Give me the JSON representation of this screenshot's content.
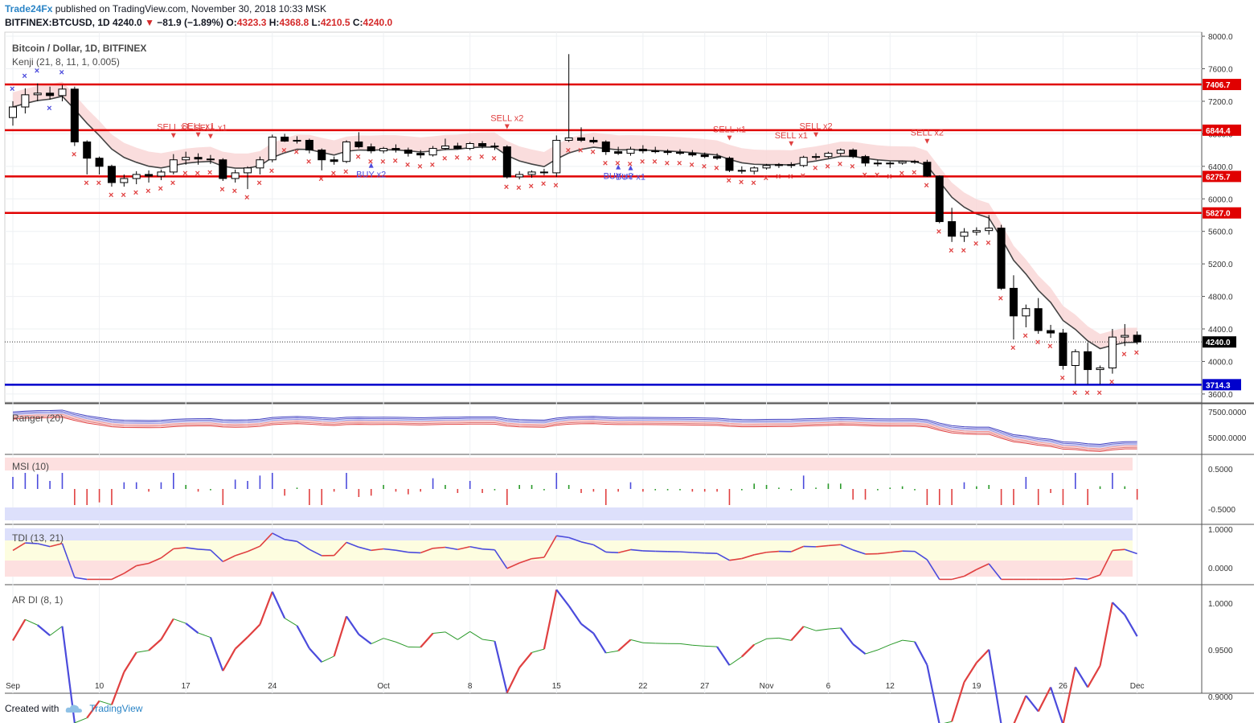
{
  "header": {
    "brand": "Trade24Fx",
    "published": " published on TradingView.com, November 30, 2018 10:33 MSK",
    "symbol": "BITFINEX:BTCUSD, 1D",
    "last": "4240.0",
    "arrow": "▼",
    "change": "−81.9 (−1.89%)",
    "o_label": "O:",
    "o": "4323.3",
    "h_label": "H:",
    "h": "4368.8",
    "l_label": "L:",
    "l": "4210.5",
    "c_label": "C:",
    "c": "4240.0"
  },
  "footer": {
    "created": "Created with",
    "tv": "TradingView"
  },
  "colors": {
    "up": "#ffffff",
    "down": "#000000",
    "level": "#e00000",
    "support": "#0000cc",
    "sell": "#e04040",
    "buy": "#4b4bdc"
  },
  "chart_data": [
    {
      "type": "candlestick",
      "title": "Bitcoin / Dollar, 1D, BITFINEX",
      "indicator": "Kenji (21, 8, 11, 1, 0.005)",
      "x_ticks": [
        "Sep",
        "10",
        "17",
        "24",
        "Oct",
        "8",
        "15",
        "22",
        "27",
        "Nov",
        "6",
        "12",
        "19",
        "26",
        "Dec"
      ],
      "y_ticks": [
        "8000.0",
        "7600.0",
        "7200.0",
        "6800.0",
        "6400.0",
        "6000.0",
        "5600.0",
        "5200.0",
        "4800.0",
        "4400.0",
        "4000.0",
        "3600.0"
      ],
      "ylim": [
        3500,
        8050
      ],
      "levels": [
        {
          "label": "7406.7",
          "value": 7406.7,
          "color": "red"
        },
        {
          "label": "6844.4",
          "value": 6844.4,
          "color": "red"
        },
        {
          "label": "6275.7",
          "value": 6275.7,
          "color": "red"
        },
        {
          "label": "5827.0",
          "value": 5827.0,
          "color": "red"
        },
        {
          "label": "3714.3",
          "value": 3714.3,
          "color": "blue"
        }
      ],
      "last_price": {
        "label": "4240.0",
        "value": 4240.0
      },
      "signals": [
        {
          "text": "SELL x1",
          "day": 13,
          "kind": "sell"
        },
        {
          "text": "SELL x1",
          "day": 15,
          "kind": "sell"
        },
        {
          "text": "SELL x1",
          "day": 16,
          "kind": "sell"
        },
        {
          "text": "SELL x2",
          "day": 40,
          "kind": "sell"
        },
        {
          "text": "BUY x2",
          "day": 29,
          "kind": "buy"
        },
        {
          "text": "BUY x2",
          "day": 49,
          "kind": "buy"
        },
        {
          "text": "BUY x1",
          "day": 50,
          "kind": "buy"
        },
        {
          "text": "SELL x1",
          "day": 58,
          "kind": "sell"
        },
        {
          "text": "SELL x1",
          "day": 63,
          "kind": "sell"
        },
        {
          "text": "SELL x2",
          "day": 65,
          "kind": "sell"
        },
        {
          "text": "SELL x2",
          "day": 74,
          "kind": "sell"
        }
      ],
      "candles": [
        [
          7000,
          7200,
          6900,
          7130
        ],
        [
          7130,
          7360,
          7050,
          7280
        ],
        [
          7280,
          7420,
          7200,
          7300
        ],
        [
          7300,
          7380,
          7220,
          7270
        ],
        [
          7270,
          7400,
          7200,
          7350
        ],
        [
          7350,
          7380,
          6650,
          6700
        ],
        [
          6700,
          6720,
          6300,
          6500
        ],
        [
          6500,
          6520,
          6300,
          6400
        ],
        [
          6400,
          6420,
          6150,
          6200
        ],
        [
          6200,
          6300,
          6150,
          6250
        ],
        [
          6250,
          6340,
          6180,
          6300
        ],
        [
          6300,
          6350,
          6200,
          6280
        ],
        [
          6280,
          6360,
          6230,
          6330
        ],
        [
          6330,
          6550,
          6300,
          6480
        ],
        [
          6480,
          6580,
          6420,
          6510
        ],
        [
          6510,
          6560,
          6420,
          6490
        ],
        [
          6490,
          6540,
          6430,
          6480
        ],
        [
          6480,
          6500,
          6220,
          6250
        ],
        [
          6250,
          6360,
          6200,
          6320
        ],
        [
          6320,
          6400,
          6120,
          6380
        ],
        [
          6380,
          6520,
          6300,
          6480
        ],
        [
          6480,
          6790,
          6450,
          6760
        ],
        [
          6760,
          6800,
          6700,
          6710
        ],
        [
          6710,
          6770,
          6680,
          6720
        ],
        [
          6720,
          6740,
          6560,
          6600
        ],
        [
          6600,
          6620,
          6350,
          6480
        ],
        [
          6480,
          6520,
          6420,
          6460
        ],
        [
          6460,
          6720,
          6440,
          6700
        ],
        [
          6700,
          6820,
          6620,
          6640
        ],
        [
          6640,
          6680,
          6560,
          6590
        ],
        [
          6590,
          6640,
          6560,
          6620
        ],
        [
          6620,
          6670,
          6570,
          6600
        ],
        [
          6600,
          6630,
          6520,
          6560
        ],
        [
          6560,
          6600,
          6500,
          6540
        ],
        [
          6540,
          6650,
          6520,
          6620
        ],
        [
          6620,
          6740,
          6600,
          6650
        ],
        [
          6650,
          6690,
          6610,
          6620
        ],
        [
          6620,
          6700,
          6600,
          6680
        ],
        [
          6680,
          6710,
          6620,
          6650
        ],
        [
          6650,
          6690,
          6600,
          6640
        ],
        [
          6640,
          6660,
          6250,
          6270
        ],
        [
          6270,
          6340,
          6240,
          6300
        ],
        [
          6300,
          6350,
          6260,
          6330
        ],
        [
          6330,
          6370,
          6290,
          6320
        ],
        [
          6320,
          6780,
          6270,
          6720
        ],
        [
          6720,
          7780,
          6700,
          6750
        ],
        [
          6750,
          6880,
          6700,
          6720
        ],
        [
          6720,
          6760,
          6680,
          6700
        ],
        [
          6700,
          6720,
          6540,
          6580
        ],
        [
          6580,
          6640,
          6540,
          6560
        ],
        [
          6560,
          6640,
          6530,
          6610
        ],
        [
          6610,
          6660,
          6560,
          6590
        ],
        [
          6590,
          6640,
          6560,
          6580
        ],
        [
          6580,
          6610,
          6540,
          6570
        ],
        [
          6570,
          6610,
          6540,
          6560
        ],
        [
          6560,
          6600,
          6520,
          6540
        ],
        [
          6540,
          6570,
          6500,
          6520
        ],
        [
          6520,
          6560,
          6480,
          6500
        ],
        [
          6500,
          6520,
          6330,
          6350
        ],
        [
          6350,
          6400,
          6310,
          6340
        ],
        [
          6340,
          6400,
          6300,
          6380
        ],
        [
          6380,
          6430,
          6360,
          6410
        ],
        [
          6410,
          6440,
          6380,
          6420
        ],
        [
          6420,
          6450,
          6380,
          6410
        ],
        [
          6410,
          6530,
          6390,
          6510
        ],
        [
          6510,
          6560,
          6480,
          6520
        ],
        [
          6520,
          6580,
          6500,
          6560
        ],
        [
          6560,
          6620,
          6530,
          6600
        ],
        [
          6600,
          6620,
          6500,
          6520
        ],
        [
          6520,
          6540,
          6400,
          6440
        ],
        [
          6440,
          6480,
          6400,
          6430
        ],
        [
          6430,
          6460,
          6380,
          6440
        ],
        [
          6440,
          6470,
          6420,
          6460
        ],
        [
          6460,
          6480,
          6430,
          6450
        ],
        [
          6450,
          6480,
          6270,
          6280
        ],
        [
          6280,
          6290,
          5700,
          5720
        ],
        [
          5720,
          5890,
          5470,
          5540
        ],
        [
          5540,
          5640,
          5470,
          5590
        ],
        [
          5590,
          5650,
          5550,
          5610
        ],
        [
          5610,
          5800,
          5560,
          5640
        ],
        [
          5640,
          5680,
          4880,
          4900
        ],
        [
          4900,
          5060,
          4270,
          4560
        ],
        [
          4560,
          4700,
          4420,
          4650
        ],
        [
          4650,
          4780,
          4340,
          4380
        ],
        [
          4380,
          4450,
          4290,
          4350
        ],
        [
          4350,
          4400,
          3900,
          3950
        ],
        [
          3950,
          4150,
          3720,
          4120
        ],
        [
          4120,
          4230,
          3720,
          3900
        ],
        [
          3900,
          3950,
          3720,
          3920
        ],
        [
          3920,
          4400,
          3850,
          4300
        ],
        [
          4300,
          4460,
          4190,
          4320
        ],
        [
          4323,
          4369,
          4210,
          4240
        ]
      ]
    },
    {
      "type": "line",
      "title": "Ranger (20)",
      "y_ticks": [
        "7500.0000",
        "5000.0000"
      ]
    },
    {
      "type": "bar",
      "title": "MSI (10)",
      "y_ticks": [
        "0.5000",
        "-0.5000"
      ]
    },
    {
      "type": "line",
      "title": "TDI (13, 21)",
      "y_ticks": [
        "1.0000",
        "0.0000"
      ]
    },
    {
      "type": "line",
      "title": "AR DI (8, 1)",
      "y_ticks": [
        "1.0000",
        "0.9500",
        "0.9000"
      ]
    }
  ]
}
